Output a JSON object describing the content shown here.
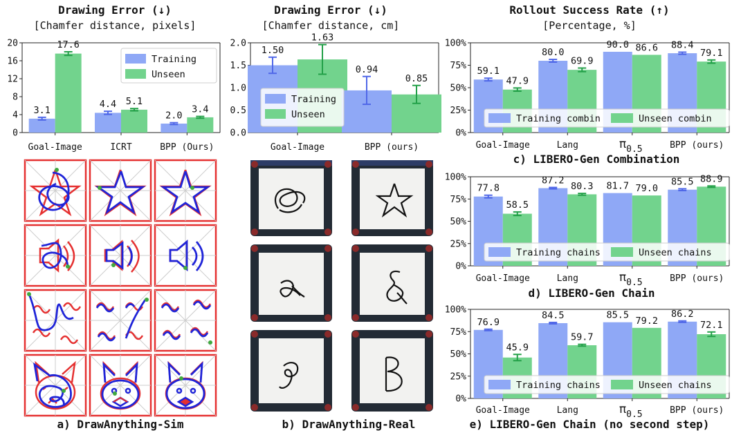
{
  "colors": {
    "training": "#8fa8f6",
    "unseen": "#72d38d",
    "err_training": "#4f67e8",
    "err_unseen": "#23a048",
    "red_stroke": "#e53030",
    "blue_stroke": "#1f24d8",
    "green_dot": "#3fa93f"
  },
  "chart_data": [
    {
      "id": "a",
      "type": "bar",
      "title": "Drawing Error (↓)",
      "subtitle": "[Chamfer distance, pixels]",
      "categories": [
        "Goal-Image",
        "ICRT",
        "BPP (Ours)"
      ],
      "series": [
        {
          "name": "Training",
          "values": [
            3.1,
            4.4,
            2.0
          ],
          "labels": [
            "3.1",
            "4.4",
            "2.0"
          ],
          "err": [
            0.3,
            0.35,
            0.2
          ]
        },
        {
          "name": "Unseen",
          "values": [
            17.6,
            5.1,
            3.4
          ],
          "labels": [
            "17.6",
            "5.1",
            "3.4"
          ],
          "err": [
            0.4,
            0.25,
            0.2
          ]
        }
      ],
      "ylim": [
        0,
        20
      ],
      "yticks": [
        0,
        4,
        8,
        12,
        16,
        20
      ],
      "ytick_labels": [
        "0",
        "4",
        "8",
        "12",
        "16",
        "20"
      ],
      "legend": "top-right",
      "caption": "a) DrawAnything-Sim"
    },
    {
      "id": "b",
      "type": "bar",
      "title": "Drawing Error (↓)",
      "subtitle": "[Chamfer distance, cm]",
      "categories": [
        "Goal-Image",
        "BPP (ours)"
      ],
      "series": [
        {
          "name": "Training",
          "values": [
            1.5,
            0.94
          ],
          "labels": [
            "1.50",
            "0.94"
          ],
          "err": [
            0.18,
            0.31
          ]
        },
        {
          "name": "Unseen",
          "values": [
            1.63,
            0.85
          ],
          "labels": [
            "1.63",
            "0.85"
          ],
          "err": [
            0.33,
            0.2
          ]
        }
      ],
      "ylim": [
        0,
        2.0
      ],
      "yticks": [
        0,
        0.5,
        1.0,
        1.5,
        2.0
      ],
      "ytick_labels": [
        "0.0",
        "0.5",
        "1.0",
        "1.5",
        "2.0"
      ],
      "legend": "lower-left",
      "caption": "b) DrawAnything-Real"
    },
    {
      "id": "c",
      "type": "bar",
      "title": "Rollout Success Rate (↑)",
      "subtitle": "[Percentage, %]",
      "categories": [
        "Goal-Image",
        "Lang",
        "π0.5",
        "BPP (ours)"
      ],
      "series": [
        {
          "name": "Training combin",
          "values": [
            59.1,
            80.0,
            90.0,
            88.4
          ],
          "labels": [
            "59.1",
            "80.0",
            "90.0",
            "88.4"
          ],
          "err": [
            1.5,
            1.5,
            0,
            1.2
          ]
        },
        {
          "name": "Unseen combin",
          "values": [
            47.9,
            69.9,
            86.6,
            79.1
          ],
          "labels": [
            "47.9",
            "69.9",
            "86.6",
            "79.1"
          ],
          "err": [
            1.8,
            2.0,
            0,
            1.8
          ]
        }
      ],
      "ylim": [
        0,
        100
      ],
      "yticks": [
        0,
        25,
        50,
        75,
        100
      ],
      "ytick_labels": [
        "0%",
        "25%",
        "50%",
        "75%",
        "100%"
      ],
      "legend": "bottom",
      "caption": "c) LIBERO-Gen Combination"
    },
    {
      "id": "d",
      "type": "bar",
      "categories": [
        "Goal-Image",
        "Lang",
        "π0.5",
        "BPP (ours)"
      ],
      "series": [
        {
          "name": "Training chains",
          "values": [
            77.8,
            87.2,
            81.7,
            85.5
          ],
          "labels": [
            "77.8",
            "87.2",
            "81.7",
            "85.5"
          ],
          "err": [
            1.5,
            0.8,
            0,
            1.0
          ]
        },
        {
          "name": "Unseen chains",
          "values": [
            58.5,
            80.3,
            79.0,
            88.9
          ],
          "labels": [
            "58.5",
            "80.3",
            "79.0",
            "88.9"
          ],
          "err": [
            2.0,
            1.0,
            0,
            0.8
          ]
        }
      ],
      "ylim": [
        0,
        100
      ],
      "yticks": [
        0,
        25,
        50,
        75,
        100
      ],
      "ytick_labels": [
        "0%",
        "25%",
        "50%",
        "75%",
        "100%"
      ],
      "legend": "bottom",
      "caption": "d) LIBERO-Gen Chain"
    },
    {
      "id": "e",
      "type": "bar",
      "categories": [
        "Goal-Image",
        "Lang",
        "π0.5",
        "BPP (ours)"
      ],
      "series": [
        {
          "name": "Training chains",
          "values": [
            76.9,
            84.5,
            85.5,
            86.2
          ],
          "labels": [
            "76.9",
            "84.5",
            "85.5",
            "86.2"
          ],
          "err": [
            0.8,
            0.8,
            0,
            0.8
          ]
        },
        {
          "name": "Unseen chains",
          "values": [
            45.9,
            59.7,
            79.2,
            72.1
          ],
          "labels": [
            "45.9",
            "59.7",
            "79.2",
            "72.1"
          ],
          "err": [
            3.5,
            1.0,
            0,
            2.5
          ]
        }
      ],
      "ylim": [
        0,
        100
      ],
      "yticks": [
        0,
        25,
        50,
        75,
        100
      ],
      "ytick_labels": [
        "0%",
        "25%",
        "50%",
        "75%",
        "100%"
      ],
      "legend": "bottom",
      "caption": "e) LIBERO-Gen Chain (no second step)"
    }
  ]
}
